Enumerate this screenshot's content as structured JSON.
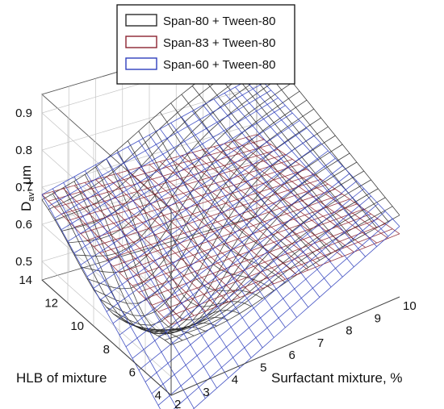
{
  "chart_data": {
    "type": "surface",
    "axes": {
      "z": {
        "label": "D",
        "label_subscript": "av",
        "label_suffix": ", μm",
        "ticks": [
          "0.5",
          "0.6",
          "0.7",
          "0.8",
          "0.9"
        ],
        "range": [
          0.45,
          0.95
        ]
      },
      "x": {
        "label": "Surfactant mixture, %",
        "ticks": [
          "2",
          "3",
          "4",
          "5",
          "6",
          "7",
          "8",
          "9",
          "10"
        ],
        "range": [
          2,
          10
        ]
      },
      "y": {
        "label": "HLB of mixture",
        "ticks": [
          "4",
          "6",
          "8",
          "10",
          "12",
          "14"
        ],
        "range": [
          4,
          14
        ]
      }
    },
    "legend": {
      "position": "top-center",
      "entries": [
        {
          "label": "Span-80 + Tween-80",
          "color": "#2a2a2a"
        },
        {
          "label": "Span-83 + Tween-80",
          "color": "#8b2331"
        },
        {
          "label": "Span-60 + Tween-80",
          "color": "#2f3fbd"
        }
      ]
    },
    "series": [
      {
        "name": "Span-80 + Tween-80",
        "color": "#2a2a2a",
        "corners": {
          "x2_hlb4": 0.6,
          "x2_hlb14": 0.68,
          "x10_hlb4": 0.67,
          "x10_hlb14": 0.93
        },
        "min_point": {
          "x": 4,
          "hlb": 9,
          "value": 0.44
        }
      },
      {
        "name": "Span-83 + Tween-80",
        "color": "#8b2331",
        "corners": {
          "x2_hlb4": 0.64,
          "x2_hlb14": 0.68,
          "x10_hlb4": 0.62,
          "x10_hlb14": 0.67
        }
      },
      {
        "name": "Span-60 + Tween-80",
        "color": "#2f3fbd",
        "corners": {
          "x2_hlb4": 0.36,
          "x2_hlb14": 0.68,
          "x10_hlb4": 0.64,
          "x10_hlb14": 0.83
        }
      }
    ],
    "grid": true
  }
}
